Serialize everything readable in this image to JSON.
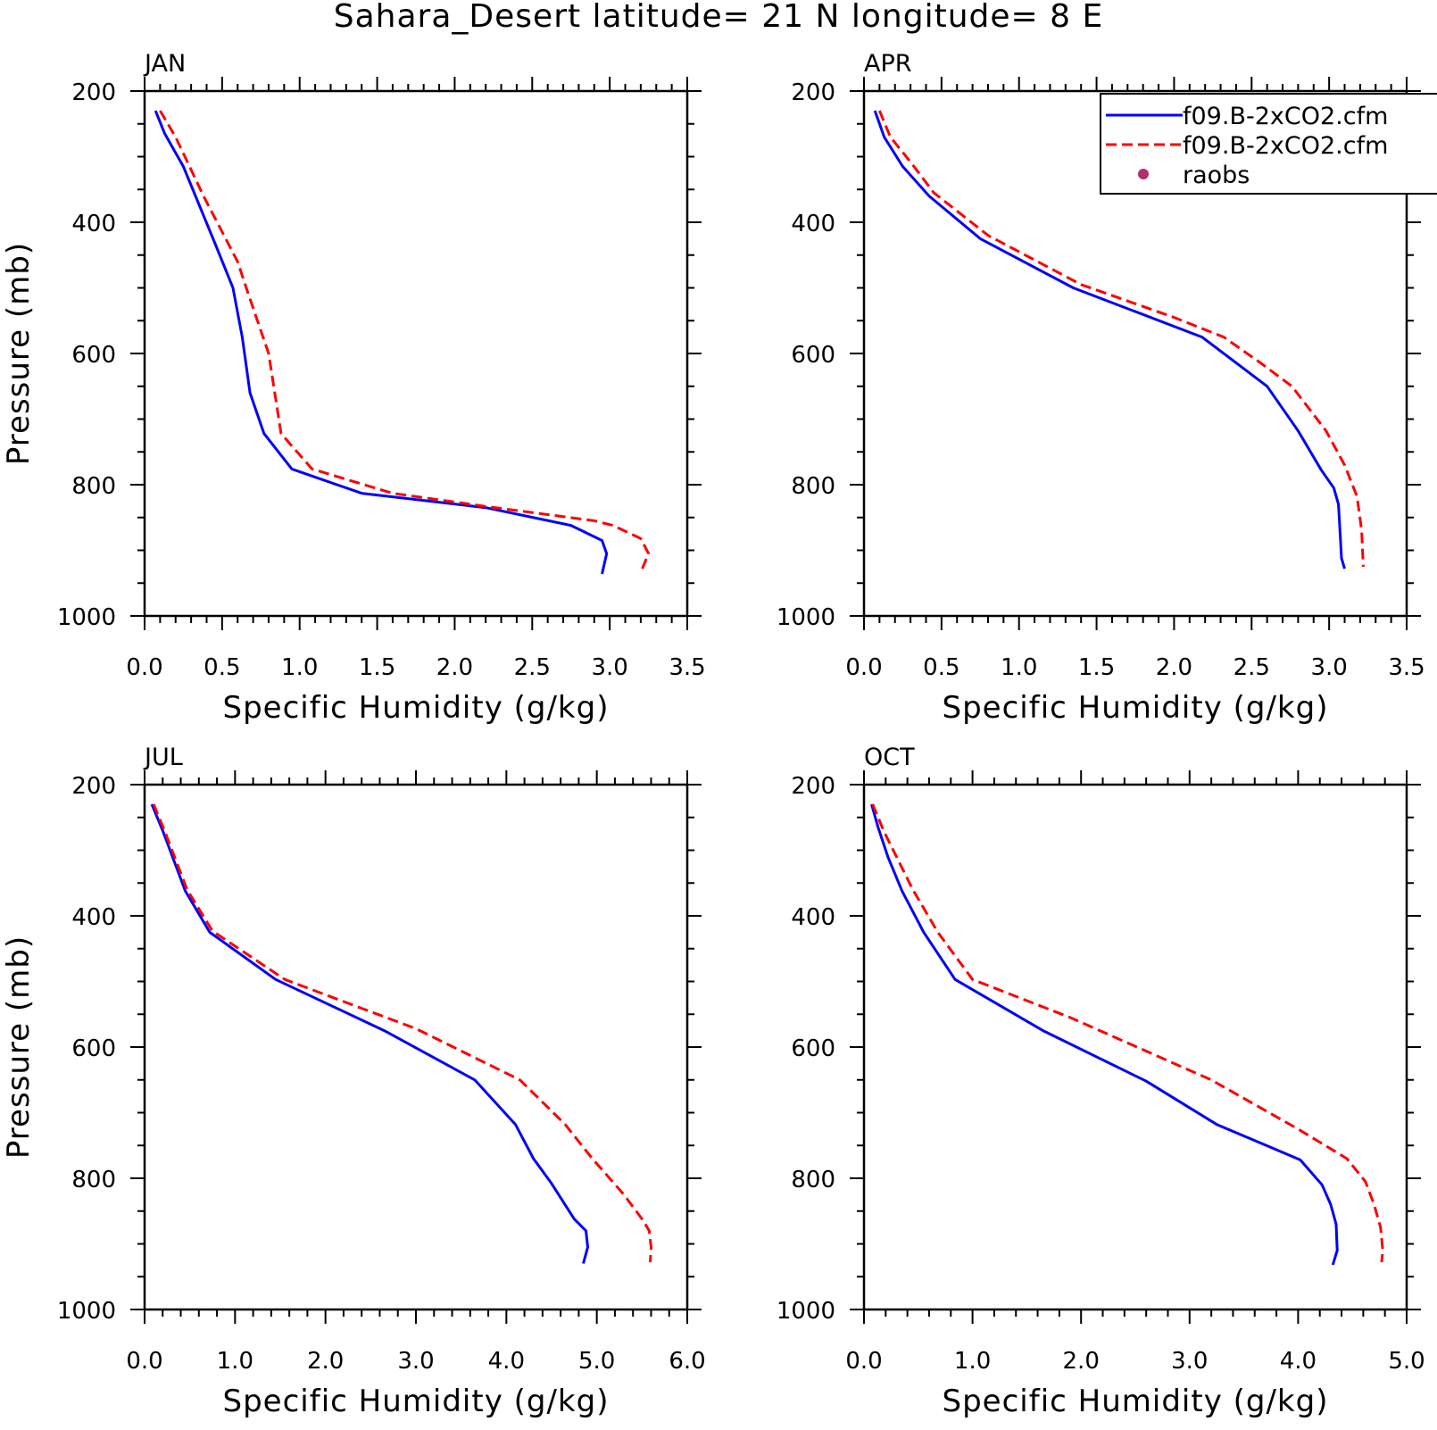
{
  "figure": {
    "title": "Sahara_Desert  latitude= 21 N longitude= 8 E"
  },
  "legend": {
    "entries": [
      {
        "label": "f09.B-2xCO2.cfm",
        "style": "solid",
        "color": "#0000ff"
      },
      {
        "label": "f09.B-2xCO2.cfm",
        "style": "dashed",
        "color": "#ff0000"
      },
      {
        "label": "raobs",
        "style": "marker",
        "color": "#b0306a"
      }
    ]
  },
  "chart_data": [
    {
      "type": "line",
      "title": "JAN",
      "xlabel": "Specific Humidity (g/kg)",
      "ylabel": "Pressure (mb)",
      "xlim": [
        0,
        3.5
      ],
      "ylim": [
        1000,
        200
      ],
      "xticks": [
        "0.0",
        "0.5",
        "1.0",
        "1.5",
        "2.0",
        "2.5",
        "3.0",
        "3.5"
      ],
      "yticks": [
        "200",
        "400",
        "600",
        "800",
        "1000"
      ],
      "series": [
        {
          "color": "#0000ff",
          "style": "solid",
          "points": [
            [
              0.07,
              230
            ],
            [
              0.13,
              265
            ],
            [
              0.25,
              315
            ],
            [
              0.45,
              430
            ],
            [
              0.57,
              500
            ],
            [
              0.63,
              575
            ],
            [
              0.68,
              660
            ],
            [
              0.77,
              722
            ],
            [
              0.95,
              776
            ],
            [
              1.4,
              813
            ],
            [
              2.2,
              835
            ],
            [
              2.75,
              862
            ],
            [
              2.95,
              885
            ],
            [
              2.98,
              905
            ],
            [
              2.95,
              936
            ]
          ]
        },
        {
          "color": "#ff0000",
          "style": "dashed",
          "points": [
            [
              0.1,
              230
            ],
            [
              0.2,
              270
            ],
            [
              0.38,
              360
            ],
            [
              0.6,
              460
            ],
            [
              0.67,
              510
            ],
            [
              0.8,
              600
            ],
            [
              0.88,
              722
            ],
            [
              1.08,
              776
            ],
            [
              1.6,
              813
            ],
            [
              2.2,
              833
            ],
            [
              2.9,
              855
            ],
            [
              3.02,
              862
            ],
            [
              3.2,
              882
            ],
            [
              3.25,
              905
            ],
            [
              3.21,
              928
            ]
          ]
        },
        {
          "color": "#b0306a",
          "style": "marker",
          "points": []
        }
      ]
    },
    {
      "type": "line",
      "title": "APR",
      "xlabel": "Specific Humidity (g/kg)",
      "ylabel": "",
      "xlim": [
        0,
        3.5
      ],
      "ylim": [
        1000,
        200
      ],
      "xticks": [
        "0.0",
        "0.5",
        "1.0",
        "1.5",
        "2.0",
        "2.5",
        "3.0",
        "3.5"
      ],
      "yticks": [
        "200",
        "400",
        "600",
        "800",
        "1000"
      ],
      "series": [
        {
          "color": "#0000ff",
          "style": "solid",
          "points": [
            [
              0.07,
              230
            ],
            [
              0.13,
              270
            ],
            [
              0.25,
              315
            ],
            [
              0.42,
              360
            ],
            [
              0.75,
              425
            ],
            [
              1.35,
              500
            ],
            [
              2.18,
              575
            ],
            [
              2.6,
              650
            ],
            [
              2.8,
              718
            ],
            [
              2.95,
              778
            ],
            [
              3.03,
              805
            ],
            [
              3.06,
              830
            ],
            [
              3.07,
              870
            ],
            [
              3.08,
              912
            ],
            [
              3.1,
              928
            ]
          ]
        },
        {
          "color": "#ff0000",
          "style": "dashed",
          "points": [
            [
              0.1,
              230
            ],
            [
              0.17,
              270
            ],
            [
              0.3,
              308
            ],
            [
              0.45,
              355
            ],
            [
              0.8,
              420
            ],
            [
              1.4,
              495
            ],
            [
              2.0,
              545
            ],
            [
              2.32,
              575
            ],
            [
              2.55,
              613
            ],
            [
              2.76,
              650
            ],
            [
              2.98,
              718
            ],
            [
              3.1,
              770
            ],
            [
              3.18,
              818
            ],
            [
              3.21,
              870
            ],
            [
              3.22,
              925
            ]
          ]
        },
        {
          "color": "#b0306a",
          "style": "marker",
          "points": []
        }
      ]
    },
    {
      "type": "line",
      "title": "JUL",
      "xlabel": "Specific Humidity (g/kg)",
      "ylabel": "Pressure (mb)",
      "xlim": [
        0,
        6.0
      ],
      "ylim": [
        1000,
        200
      ],
      "xticks": [
        "0.0",
        "1.0",
        "2.0",
        "3.0",
        "4.0",
        "5.0",
        "6.0"
      ],
      "yticks": [
        "200",
        "400",
        "600",
        "800",
        "1000"
      ],
      "series": [
        {
          "color": "#0000ff",
          "style": "solid",
          "points": [
            [
              0.08,
              230
            ],
            [
              0.2,
              270
            ],
            [
              0.45,
              362
            ],
            [
              0.72,
              425
            ],
            [
              1.45,
              497
            ],
            [
              2.65,
              575
            ],
            [
              3.65,
              650
            ],
            [
              4.1,
              718
            ],
            [
              4.3,
              770
            ],
            [
              4.5,
              808
            ],
            [
              4.75,
              862
            ],
            [
              4.88,
              880
            ],
            [
              4.9,
              905
            ],
            [
              4.85,
              930
            ]
          ]
        },
        {
          "color": "#ff0000",
          "style": "dashed",
          "points": [
            [
              0.1,
              230
            ],
            [
              0.22,
              270
            ],
            [
              0.47,
              360
            ],
            [
              0.75,
              423
            ],
            [
              1.55,
              497
            ],
            [
              3.0,
              572
            ],
            [
              4.15,
              650
            ],
            [
              4.65,
              718
            ],
            [
              4.95,
              770
            ],
            [
              5.3,
              825
            ],
            [
              5.5,
              862
            ],
            [
              5.58,
              880
            ],
            [
              5.6,
              905
            ],
            [
              5.59,
              928
            ]
          ]
        },
        {
          "color": "#b0306a",
          "style": "marker",
          "points": []
        }
      ]
    },
    {
      "type": "line",
      "title": "OCT",
      "xlabel": "Specific Humidity (g/kg)",
      "ylabel": "",
      "xlim": [
        0,
        5.0
      ],
      "ylim": [
        1000,
        200
      ],
      "xticks": [
        "0.0",
        "1.0",
        "2.0",
        "3.0",
        "4.0",
        "5.0"
      ],
      "yticks": [
        "200",
        "400",
        "600",
        "800",
        "1000"
      ],
      "series": [
        {
          "color": "#0000ff",
          "style": "solid",
          "points": [
            [
              0.07,
              230
            ],
            [
              0.13,
              265
            ],
            [
              0.22,
              310
            ],
            [
              0.35,
              362
            ],
            [
              0.55,
              425
            ],
            [
              0.84,
              497
            ],
            [
              1.65,
              575
            ],
            [
              2.6,
              652
            ],
            [
              3.25,
              718
            ],
            [
              4.02,
              772
            ],
            [
              4.22,
              810
            ],
            [
              4.3,
              840
            ],
            [
              4.35,
              870
            ],
            [
              4.36,
              910
            ],
            [
              4.32,
              932
            ]
          ]
        },
        {
          "color": "#ff0000",
          "style": "dashed",
          "points": [
            [
              0.08,
              230
            ],
            [
              0.18,
              270
            ],
            [
              0.3,
              310
            ],
            [
              0.45,
              360
            ],
            [
              0.68,
              425
            ],
            [
              1.0,
              497
            ],
            [
              1.9,
              555
            ],
            [
              3.2,
              650
            ],
            [
              4.0,
              725
            ],
            [
              4.45,
              770
            ],
            [
              4.62,
              805
            ],
            [
              4.7,
              840
            ],
            [
              4.76,
              875
            ],
            [
              4.78,
              910
            ],
            [
              4.77,
              928
            ]
          ]
        },
        {
          "color": "#b0306a",
          "style": "marker",
          "points": []
        }
      ]
    }
  ]
}
